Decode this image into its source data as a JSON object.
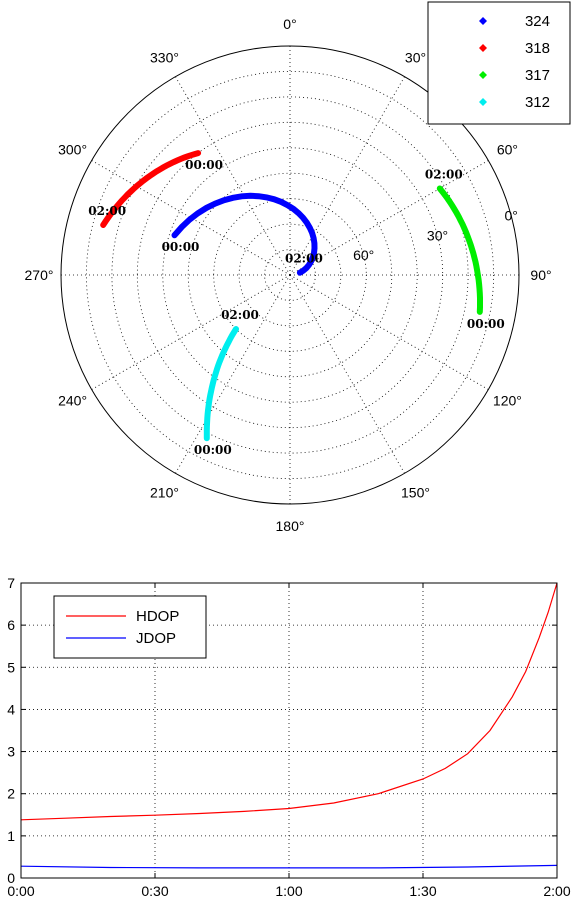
{
  "chart_data": [
    {
      "type": "scatter",
      "subtype": "polar-skyplot",
      "angle_ticks": [
        "0°",
        "30°",
        "60°",
        "90°",
        "120°",
        "150°",
        "180°",
        "210°",
        "240°",
        "270°",
        "300°",
        "330°"
      ],
      "radial_ticks": [
        "0°",
        "30°",
        "60°"
      ],
      "grid": true,
      "legend_position": "top-right",
      "series": [
        {
          "name": "324",
          "color": "#0000ff",
          "start": {
            "azimuth": 289,
            "elevation": 42,
            "label": "00:00"
          },
          "end": {
            "azimuth": 77,
            "elevation": 86,
            "label": "02:00"
          }
        },
        {
          "name": "318",
          "color": "#ff0000",
          "start": {
            "azimuth": 323,
            "elevation": 30,
            "label": "00:00"
          },
          "end": {
            "azimuth": 285,
            "elevation": 14,
            "label": "02:00"
          }
        },
        {
          "name": "317",
          "color": "#00ee00",
          "start": {
            "azimuth": 101,
            "elevation": 14,
            "label": "00:00"
          },
          "end": {
            "azimuth": 60,
            "elevation": 22,
            "label": "02:00"
          }
        },
        {
          "name": "312",
          "color": "#00eeee",
          "start": {
            "azimuth": 207,
            "elevation": 18,
            "label": "00:00"
          },
          "end": {
            "azimuth": 225,
            "elevation": 60,
            "label": "02:00"
          }
        }
      ]
    },
    {
      "type": "line",
      "x_ticks": [
        "0:00",
        "0:30",
        "1:00",
        "1:30",
        "2:00"
      ],
      "y_ticks": [
        "0",
        "1",
        "2",
        "3",
        "4",
        "5",
        "6",
        "7"
      ],
      "xlim": [
        0,
        120
      ],
      "ylim": [
        0,
        7
      ],
      "grid": true,
      "legend_position": "top-left",
      "series": [
        {
          "name": "HDOP",
          "color": "#ff0000",
          "x": [
            0,
            10,
            20,
            30,
            40,
            50,
            60,
            70,
            80,
            90,
            95,
            100,
            105,
            110,
            113,
            116,
            118,
            120
          ],
          "values": [
            1.38,
            1.42,
            1.46,
            1.49,
            1.53,
            1.58,
            1.65,
            1.78,
            2.0,
            2.35,
            2.6,
            2.95,
            3.5,
            4.3,
            4.9,
            5.7,
            6.3,
            7.0
          ]
        },
        {
          "name": "JDOP",
          "color": "#0000ff",
          "x": [
            0,
            20,
            40,
            60,
            80,
            100,
            120
          ],
          "values": [
            0.28,
            0.25,
            0.24,
            0.24,
            0.24,
            0.26,
            0.3
          ]
        }
      ]
    }
  ]
}
